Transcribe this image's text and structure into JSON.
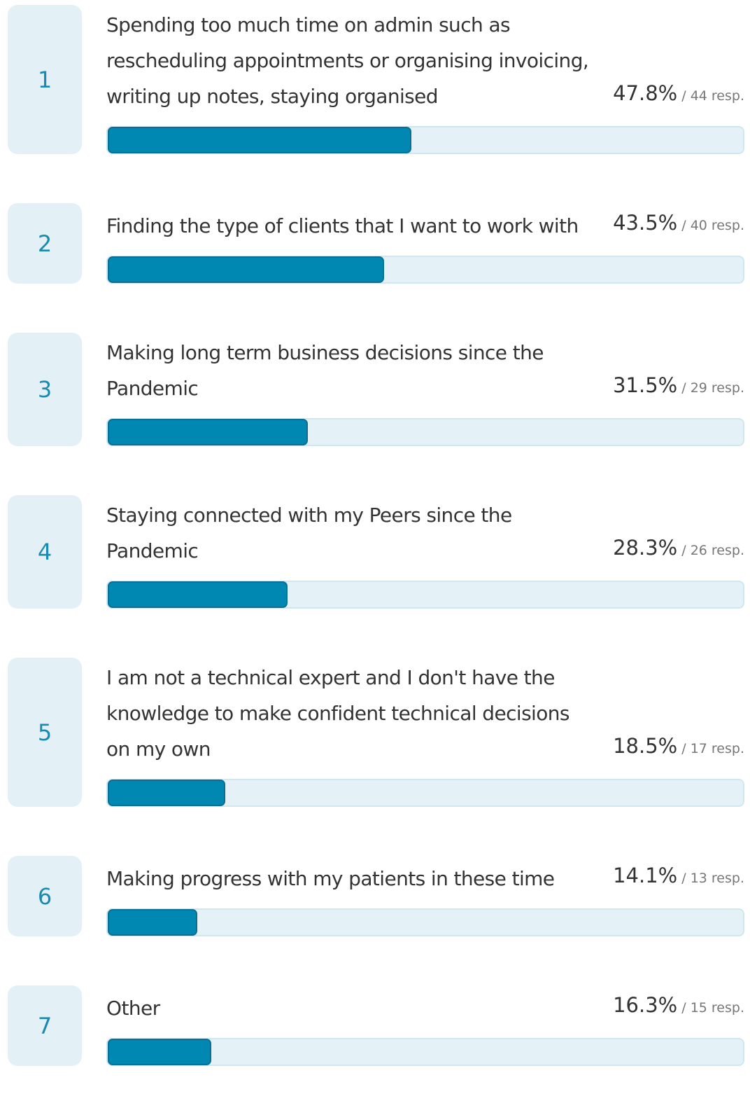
{
  "chart_data": {
    "type": "bar",
    "ranks": [
      "1",
      "2",
      "3",
      "4",
      "5",
      "6",
      "7"
    ],
    "categories": [
      "Spending too much time on admin such as rescheduling appointments or organising invoicing, writing up notes, staying organised",
      "Finding the type of clients that I want to work with",
      "Making long term business decisions since the Pandemic",
      "Staying connected with my Peers since the Pandemic",
      "I am not a technical expert and I don't have the knowledge to make confident technical decisions on my own",
      "Making progress with my patients in these time",
      "Other"
    ],
    "values": [
      47.8,
      43.5,
      31.5,
      28.3,
      18.5,
      14.1,
      16.3
    ],
    "value_labels": [
      "47.8%",
      "43.5%",
      "31.5%",
      "28.3%",
      "18.5%",
      "14.1%",
      "16.3%"
    ],
    "response_labels": [
      "/ 44 resp.",
      "/ 40 resp.",
      "/ 29 resp.",
      "/ 26 resp.",
      "/ 17 resp.",
      "/ 13 resp.",
      "/ 15 resp."
    ],
    "xlim": [
      0,
      100
    ],
    "color": "#0088b3"
  }
}
